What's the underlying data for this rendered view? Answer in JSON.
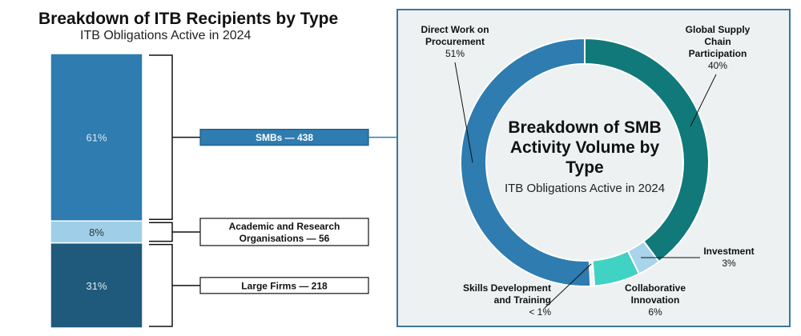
{
  "left_chart": {
    "title": "Breakdown of ITB Recipients by Type",
    "subtitle": "ITB Obligations Active in 2024"
  },
  "chart_data": [
    {
      "type": "bar",
      "title": "Breakdown of ITB Recipients by Type",
      "subtitle": "ITB Obligations Active in 2024",
      "categories": [
        "SMBs",
        "Academic and Research Organisations",
        "Large Firms"
      ],
      "values": [
        61,
        8,
        31
      ],
      "value_labels": [
        "61%",
        "8%",
        "31%"
      ],
      "counts": [
        438,
        56,
        218
      ],
      "callout_labels": [
        "SMBs — 438",
        "Academic and Research Organisations — 56",
        "Large Firms — 218"
      ],
      "colors": [
        "#2e7cb0",
        "#9fcfe8",
        "#1f5a7c"
      ],
      "stacked": true,
      "unit": "%"
    },
    {
      "type": "pie",
      "donut": true,
      "title": "Breakdown of SMB Activity Volume by Type",
      "subtitle": "ITB Obligations Active in 2024",
      "slices": [
        {
          "name": "Direct Work on Procurement",
          "value": 51,
          "label": "51%",
          "color": "#2e7cb0"
        },
        {
          "name": "Global Supply Chain Participation",
          "value": 40,
          "label": "40%",
          "color": "#11797a"
        },
        {
          "name": "Investment",
          "value": 3,
          "label": "3%",
          "color": "#a8d4ec"
        },
        {
          "name": "Collaborative Innovation",
          "value": 6,
          "label": "6%",
          "color": "#40d2c2"
        },
        {
          "name": "Skills Development and Training",
          "value": 0.5,
          "label": "< 1%",
          "color": "#f2f2f2"
        }
      ]
    }
  ]
}
